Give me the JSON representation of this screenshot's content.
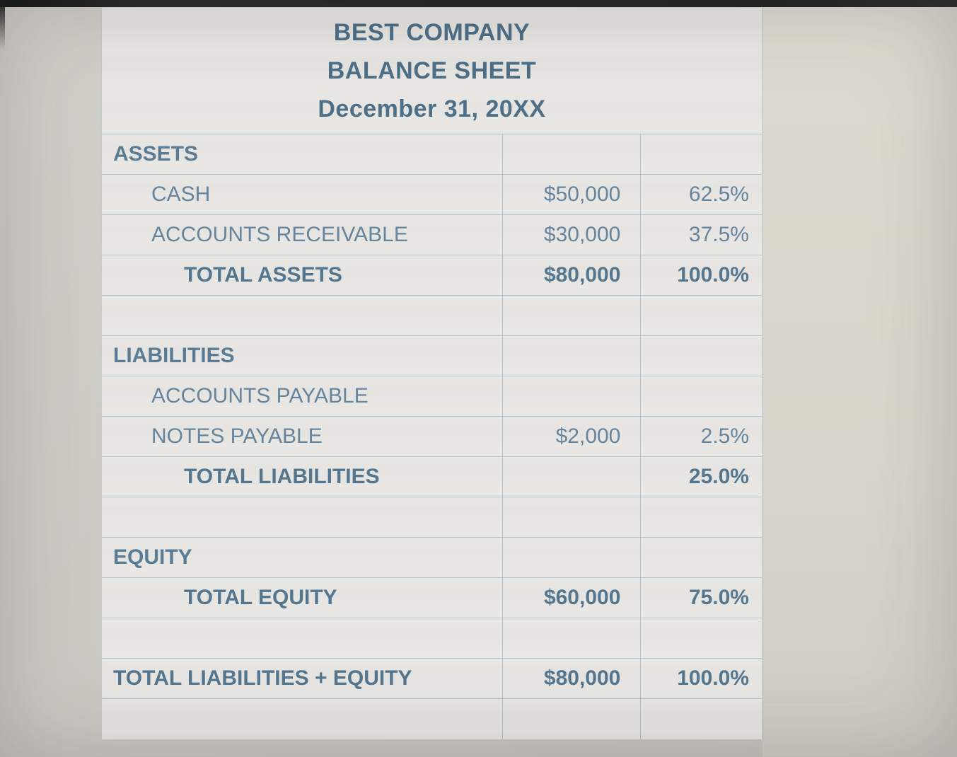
{
  "title": {
    "company": "BEST COMPANY",
    "statement": "BALANCE SHEET",
    "date": "December 31, 20XX"
  },
  "colors": {
    "text": "#5d7f99",
    "title_text": "#4d6f88",
    "grid_line": "#aec3cf",
    "sheet_background": "#e9e7e3",
    "photo_background": "#cdcac5"
  },
  "columns": [
    "label",
    "amount",
    "percent"
  ],
  "rows": [
    {
      "label": "ASSETS",
      "amount": "",
      "percent": ""
    },
    {
      "label": "CASH",
      "amount": "$50,000",
      "percent": "62.5%"
    },
    {
      "label": "ACCOUNTS RECEIVABLE",
      "amount": "$30,000",
      "percent": "37.5%"
    },
    {
      "label": "TOTAL ASSETS",
      "amount": "$80,000",
      "percent": "100.0%"
    },
    {
      "label": "",
      "amount": "",
      "percent": ""
    },
    {
      "label": "LIABILITIES",
      "amount": "",
      "percent": ""
    },
    {
      "label": "ACCOUNTS PAYABLE",
      "amount": "",
      "percent": ""
    },
    {
      "label": "NOTES PAYABLE",
      "amount": "$2,000",
      "percent": "2.5%"
    },
    {
      "label": "TOTAL LIABILITIES",
      "amount": "",
      "percent": "25.0%"
    },
    {
      "label": "",
      "amount": "",
      "percent": ""
    },
    {
      "label": "EQUITY",
      "amount": "",
      "percent": ""
    },
    {
      "label": "TOTAL EQUITY",
      "amount": "$60,000",
      "percent": "75.0%"
    },
    {
      "label": "",
      "amount": "",
      "percent": ""
    },
    {
      "label": "TOTAL LIABILITIES + EQUITY",
      "amount": "$80,000",
      "percent": "100.0%"
    }
  ]
}
